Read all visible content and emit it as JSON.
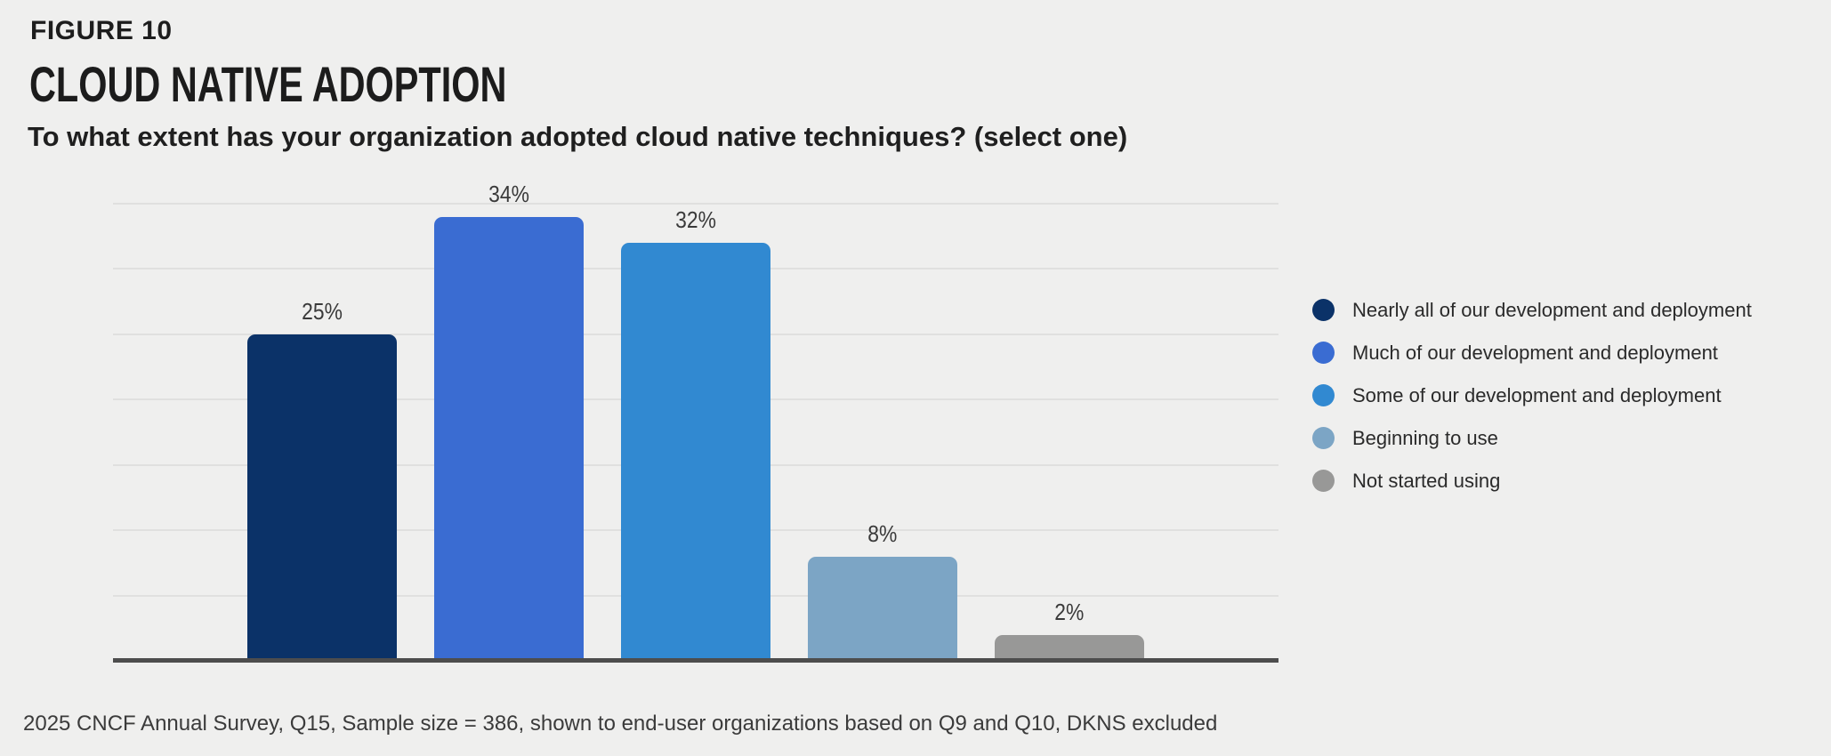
{
  "chart_data": {
    "type": "bar",
    "figure_label": "FIGURE 10",
    "title": "CLOUD NATIVE ADOPTION",
    "question": "To what extent has your organization adopted cloud native techniques? (select one)",
    "categories": [
      "Nearly all of our development and deployment",
      "Much of our development and deployment",
      "Some of our development and deployment",
      "Beginning to use",
      "Not started using"
    ],
    "values": [
      25,
      34,
      32,
      8,
      2
    ],
    "labels": [
      "25%",
      "34%",
      "32%",
      "8%",
      "2%"
    ],
    "colors": [
      "#0b3268",
      "#3a6cd2",
      "#3189d1",
      "#7ca5c5",
      "#989897"
    ],
    "xlabel": "",
    "ylabel": "",
    "ylim": [
      0,
      36.5
    ],
    "gridline_values": [
      5,
      10,
      15,
      20,
      25,
      30,
      35
    ],
    "grid": true,
    "legend_position": "right",
    "background_color": "#efefee",
    "gridline_color": "#e0e0df",
    "axis_color": "#4d4d4d",
    "source_note": "2025 CNCF Annual Survey, Q15, Sample size = 386, shown to end-user organizations based on Q9 and Q10, DKNS excluded"
  }
}
